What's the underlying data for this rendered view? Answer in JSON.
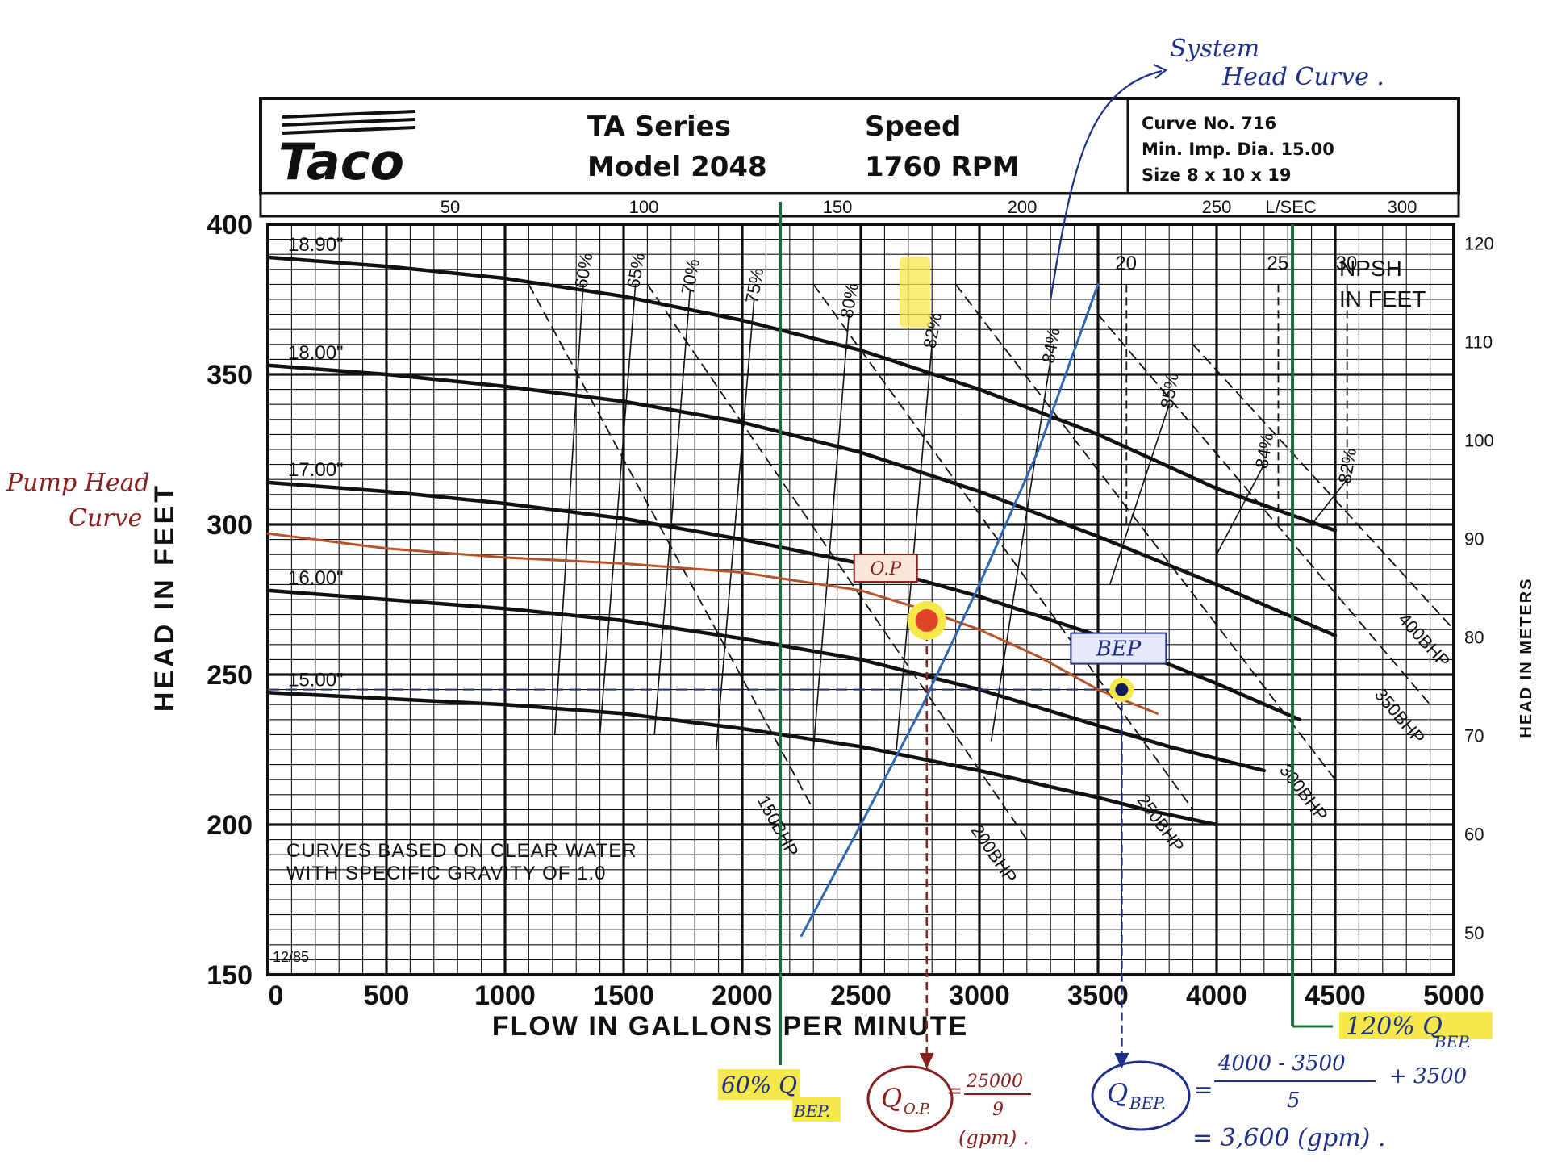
{
  "header": {
    "logo_text": "Taco",
    "series": "TA Series",
    "model": "Model 2048",
    "speed_label": "Speed",
    "speed_value": "1760 RPM",
    "curve_no": "Curve No. 716",
    "min_imp": "Min. Imp. Dia. 15.00",
    "size": "Size 8 x 10 x 19"
  },
  "chart_data": {
    "type": "line",
    "xlabel": "FLOW IN GALLONS PER MINUTE",
    "ylabel": "HEAD IN FEET",
    "ylabel_right": "HEAD IN METERS",
    "x_ticks": [
      "0",
      "500",
      "1000",
      "1500",
      "2000",
      "2500",
      "3000",
      "3500",
      "4000",
      "4500",
      "5000"
    ],
    "y_ticks": [
      "150",
      "200",
      "250",
      "300",
      "350",
      "400"
    ],
    "top_ticks": [
      "50",
      "100",
      "150",
      "200",
      "250",
      "L/SEC",
      "300"
    ],
    "right_ticks": [
      "120",
      "110",
      "100",
      "90",
      "80",
      "70",
      "60",
      "50"
    ],
    "xlim": [
      0,
      5000
    ],
    "ylim": [
      150,
      400
    ],
    "ylim_meters": [
      45.72,
      121.92
    ],
    "grid": true,
    "note_line1": "CURVES BASED ON CLEAR WATER",
    "note_line2": "WITH SPECIFIC GRAVITY OF 1.0",
    "date_code": "12/85",
    "npsh_label_1": "NPSH",
    "npsh_label_2": "IN FEET",
    "impeller_curves": [
      {
        "name": "18.90\"",
        "x": [
          0,
          500,
          1000,
          1500,
          2000,
          2500,
          3000,
          3500,
          4000,
          4500
        ],
        "y": [
          389,
          386,
          382,
          376,
          368,
          358,
          345,
          330,
          312,
          298
        ]
      },
      {
        "name": "18.00\"",
        "x": [
          0,
          500,
          1000,
          1500,
          2000,
          2500,
          3000,
          3500,
          4000,
          4500
        ],
        "y": [
          353,
          350,
          346,
          341,
          334,
          324,
          311,
          296,
          280,
          263
        ]
      },
      {
        "name": "17.00\"",
        "x": [
          0,
          500,
          1000,
          1500,
          2000,
          2500,
          3000,
          3500,
          4000,
          4350
        ],
        "y": [
          314,
          311,
          307,
          302,
          295,
          287,
          276,
          263,
          247,
          235
        ]
      },
      {
        "name": "16.00\"",
        "x": [
          0,
          500,
          1000,
          1500,
          2000,
          2500,
          3000,
          3500,
          3800,
          4200
        ],
        "y": [
          278,
          275,
          272,
          268,
          262,
          255,
          245,
          233,
          226,
          218
        ]
      },
      {
        "name": "15.00\"",
        "x": [
          0,
          500,
          1000,
          1500,
          2000,
          2500,
          3000,
          3500,
          3700,
          4000
        ],
        "y": [
          244,
          242,
          240,
          237,
          232,
          226,
          218,
          209,
          205,
          200
        ]
      }
    ],
    "efficiency_lines": [
      {
        "name": "60%",
        "x": [
          1210,
          1330
        ],
        "y": [
          230,
          380
        ]
      },
      {
        "name": "65%",
        "x": [
          1400,
          1550
        ],
        "y": [
          230,
          380
        ]
      },
      {
        "name": "70%",
        "x": [
          1630,
          1780
        ],
        "y": [
          230,
          378
        ]
      },
      {
        "name": "75%",
        "x": [
          1890,
          2050
        ],
        "y": [
          225,
          375
        ]
      },
      {
        "name": "80%",
        "x": [
          2300,
          2450
        ],
        "y": [
          225,
          370
        ]
      },
      {
        "name": "82%",
        "x": [
          2650,
          2800
        ],
        "y": [
          225,
          360
        ]
      },
      {
        "name": "84%",
        "x": [
          3050,
          3300
        ],
        "y": [
          228,
          355
        ]
      },
      {
        "name": "85%",
        "x": [
          3550,
          3800
        ],
        "y": [
          280,
          340
        ]
      },
      {
        "name": "84%",
        "x": [
          4000,
          4200
        ],
        "y": [
          290,
          320
        ]
      },
      {
        "name": "82%",
        "x": [
          4400,
          4550
        ],
        "y": [
          300,
          315
        ]
      }
    ],
    "bhp_lines": [
      {
        "name": "150BHP",
        "x": [
          1100,
          2300
        ],
        "y": [
          380,
          205
        ]
      },
      {
        "name": "200BHP",
        "x": [
          1600,
          3200
        ],
        "y": [
          380,
          195
        ]
      },
      {
        "name": "250BHP",
        "x": [
          2300,
          3900
        ],
        "y": [
          380,
          205
        ]
      },
      {
        "name": "300BHP",
        "x": [
          2900,
          4500
        ],
        "y": [
          380,
          215
        ]
      },
      {
        "name": "350BHP",
        "x": [
          3500,
          4900
        ],
        "y": [
          370,
          240
        ]
      },
      {
        "name": "400BHP",
        "x": [
          3900,
          5000
        ],
        "y": [
          360,
          265
        ]
      }
    ],
    "npsh_lines": [
      {
        "name": "20",
        "x": 3620
      },
      {
        "name": "25",
        "x": 4260
      },
      {
        "name": "30",
        "x": 4550
      }
    ],
    "system_head_curve": {
      "name": "System Head Curve",
      "x": [
        2250,
        2500,
        2750,
        3000,
        3250,
        3500
      ],
      "y": [
        163,
        200,
        238,
        280,
        325,
        380
      ]
    },
    "pump_head_curve": {
      "name": "Pump Head Curve",
      "x": [
        0,
        500,
        1000,
        1500,
        2000,
        2500,
        2750,
        3000,
        3250,
        3500,
        3750
      ],
      "y": [
        297,
        292,
        289,
        287,
        284,
        278,
        272,
        265,
        256,
        245,
        237
      ]
    },
    "operating_point": {
      "label": "O.P",
      "x": 2778,
      "y": 268
    },
    "bep": {
      "label": "BEP",
      "x": 3600,
      "y": 245
    },
    "qbep_60_x": 2160,
    "qbep_120_x": 4320,
    "bep_head_ref": 245
  },
  "annotations": {
    "system_head_1": "System",
    "system_head_2": "Head Curve .",
    "pump_head_1": "Pump Head",
    "pump_head_2": "Curve",
    "q60_main": "60% Q",
    "q60_sub": "BEP.",
    "q120_main": "120% Q",
    "q120_sub": "BEP.",
    "qop_lhs": "Q",
    "qop_sub": "O.P.",
    "qop_num": "25000",
    "qop_den": "9",
    "qop_unit": "(gpm) .",
    "qbep_lhs": "Q",
    "qbep_sub": "BEP.",
    "qbep_num": "4000 - 3500",
    "qbep_den": "5",
    "qbep_plus": "+ 3500",
    "qbep_result": "= 3,600 (gpm) ."
  },
  "colors": {
    "grid": "#111111",
    "curve": "#111111",
    "pump_curve": "#b5542a",
    "system_curve": "#2f67b2",
    "hand_blue": "#1e2f8a",
    "hand_red": "#8a1e1e",
    "highlight": "#f5e84a",
    "op_fill": "#e0452a",
    "band": "#f6c64e",
    "vline_60": "#1f6b3f"
  }
}
